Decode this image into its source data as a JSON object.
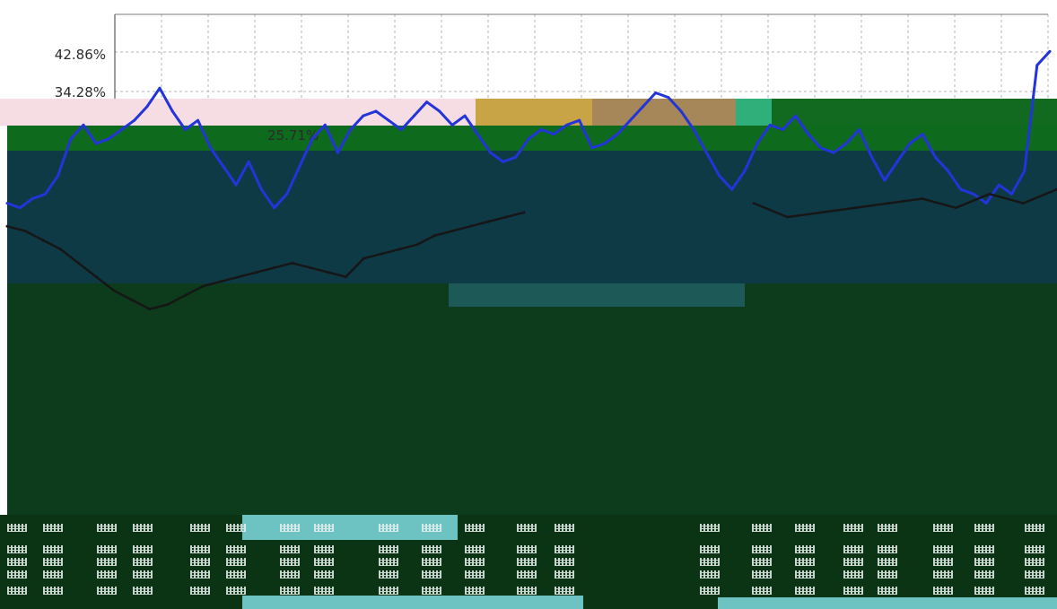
{
  "chart_data": {
    "type": "line",
    "yticks": [
      "42.86%",
      "34.28%",
      "25.71%"
    ],
    "grid": true,
    "series": [
      {
        "color": "#2334d8",
        "values": [
          10,
          9,
          11,
          12,
          16,
          24,
          27,
          23,
          24,
          26,
          28,
          31,
          35,
          30,
          26,
          28,
          22,
          18,
          14,
          19,
          13,
          9,
          12,
          18,
          24,
          27,
          21,
          26,
          29,
          30,
          28,
          26,
          29,
          32,
          30,
          27,
          29,
          25,
          21,
          19,
          20,
          24,
          26,
          25,
          27,
          28,
          22,
          23,
          25,
          28,
          31,
          34,
          33,
          30,
          26,
          21,
          16,
          13,
          17,
          23,
          27,
          26,
          29,
          25,
          22,
          21,
          23,
          26,
          20,
          15,
          19,
          23,
          25,
          20,
          17,
          13,
          12,
          10,
          14,
          12,
          17,
          40,
          43
        ]
      },
      {
        "color": "#161616",
        "values": [
          5,
          4,
          2,
          0,
          -3,
          -6,
          -9,
          -11,
          -13,
          -12,
          -10,
          -8,
          -7,
          -6,
          -5,
          -4,
          -3,
          -4,
          -5,
          -6,
          -2,
          -1,
          0,
          1,
          3,
          4,
          5,
          6,
          7,
          8,
          10,
          7,
          8,
          9,
          10,
          11,
          9,
          12,
          10,
          13
        ]
      }
    ]
  }
}
